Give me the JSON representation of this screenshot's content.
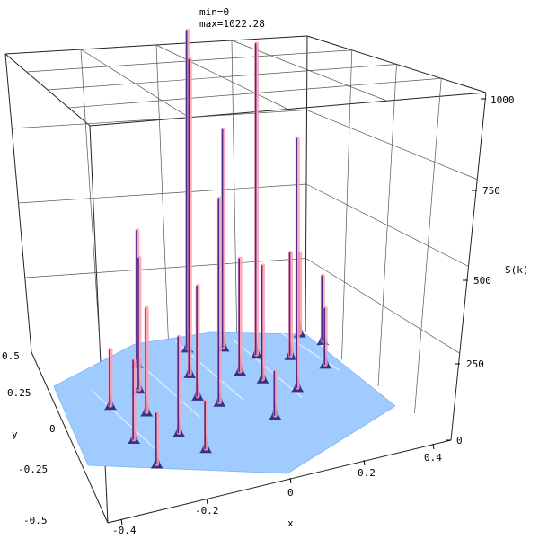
{
  "header": {
    "min_label": "min=0",
    "max_label": "max=1022.28"
  },
  "chart_data": {
    "type": "surface",
    "zlabel": "S(k)",
    "xlabel": "x",
    "ylabel": "y",
    "z_ticks": [
      "0",
      "250",
      "500",
      "750",
      "1000"
    ],
    "x_ticks": [
      "-0.4",
      "-0.2",
      "0",
      "0.2",
      "0.4"
    ],
    "y_ticks": [
      "0.5",
      "0.25",
      "0",
      "-0.25",
      "-0.5"
    ],
    "zlim": [
      0,
      1022.28
    ],
    "peaks": [
      {
        "x": -0.06,
        "y": 0.32,
        "z": 1022
      },
      {
        "x": -0.09,
        "y": 0.18,
        "z": 1000
      },
      {
        "x": 0.04,
        "y": 0.28,
        "z": 700
      },
      {
        "x": 0.12,
        "y": 0.2,
        "z": 990
      },
      {
        "x": -0.05,
        "y": -0.01,
        "z": 640
      },
      {
        "x": 0.18,
        "y": -0.03,
        "z": 780
      },
      {
        "x": -0.22,
        "y": 0.3,
        "z": 430
      },
      {
        "x": -0.25,
        "y": 0.16,
        "z": 420
      },
      {
        "x": -0.26,
        "y": 0.03,
        "z": 330
      },
      {
        "x": -0.1,
        "y": 0.05,
        "z": 350
      },
      {
        "x": -0.2,
        "y": -0.12,
        "z": 300
      },
      {
        "x": 0.05,
        "y": 0.13,
        "z": 360
      },
      {
        "x": 0.1,
        "y": 0.06,
        "z": 360
      },
      {
        "x": 0.21,
        "y": 0.15,
        "z": 330
      },
      {
        "x": 0.27,
        "y": 0.26,
        "z": 260
      },
      {
        "x": 0.32,
        "y": 0.19,
        "z": 210
      },
      {
        "x": 0.29,
        "y": 0.06,
        "z": 180
      },
      {
        "x": -0.35,
        "y": 0.11,
        "z": 180
      },
      {
        "x": -0.33,
        "y": -0.1,
        "z": 250
      },
      {
        "x": -0.3,
        "y": -0.26,
        "z": 160
      },
      {
        "x": -0.15,
        "y": -0.24,
        "z": 150
      },
      {
        "x": 0.08,
        "y": -0.15,
        "z": 140
      }
    ],
    "colors": {
      "plane": "#9fcbff",
      "peak_core": "#4a2a88",
      "peak_glow": "#ff9fb0"
    }
  }
}
